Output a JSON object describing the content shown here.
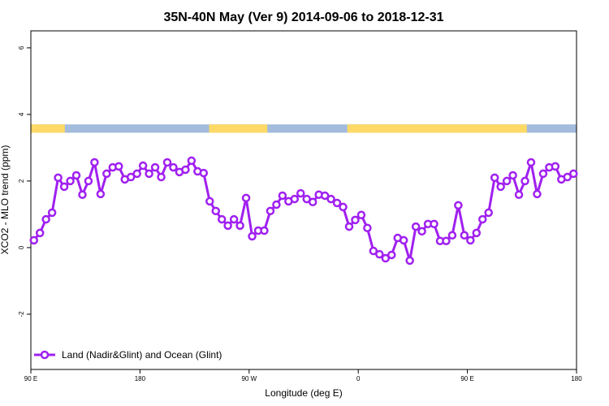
{
  "chart_data": {
    "type": "line",
    "title": "35N-40N May (Ver 9)   2014-09-06 to 2018-12-31",
    "xlabel": "Longitude (deg E)",
    "ylabel": "XCO2 - MLO trend (ppm)",
    "xlim": [
      90,
      540
    ],
    "ylim": [
      -3.66,
      6.51
    ],
    "xticks": [
      {
        "value": 90,
        "label": "90 E"
      },
      180,
      {
        "value": 270,
        "label": "90 W"
      },
      {
        "value": 360,
        "label": "0"
      },
      {
        "value": 450,
        "label": "90 E"
      },
      {
        "value": 540,
        "label": "180"
      }
    ],
    "yticks": [
      -2,
      0,
      2,
      4,
      6
    ],
    "legend": "bottom-left",
    "surface_band": {
      "ylim": [
        3.45,
        3.7
      ],
      "land_color": "#ffd966",
      "ocean_color": "#a3bbdc",
      "land": [
        [
          90,
          118
        ],
        [
          237,
          285
        ],
        [
          351,
          499
        ]
      ]
    },
    "x": [
      92.5,
      97.5,
      102.5,
      107.5,
      112.5,
      117.5,
      122.5,
      127.5,
      132.5,
      137.5,
      142.5,
      147.5,
      152.5,
      157.5,
      162.5,
      167.5,
      172.5,
      177.5,
      182.5,
      187.5,
      192.5,
      197.5,
      202.5,
      207.5,
      212.5,
      217.5,
      222.5,
      227.5,
      232.5,
      237.5,
      242.5,
      247.5,
      252.5,
      257.5,
      262.5,
      267.5,
      272.5,
      277.5,
      282.5,
      287.5,
      292.5,
      297.5,
      302.5,
      307.5,
      312.5,
      317.5,
      322.5,
      327.5,
      332.5,
      337.5,
      342.5,
      347.5,
      352.5,
      357.5,
      362.5,
      367.5,
      372.5,
      377.5,
      382.5,
      387.5,
      392.5,
      397.5,
      402.5,
      407.5,
      412.5,
      417.5,
      422.5,
      427.5,
      432.5,
      437.5,
      442.5,
      447.5,
      452.5,
      457.5,
      462.5,
      467.5,
      472.5,
      477.5,
      482.5,
      487.5,
      492.5,
      497.5,
      502.5,
      507.5,
      512.5,
      517.5,
      522.5,
      527.5,
      532.5,
      537.5
    ],
    "series": [
      {
        "name": "Land (Nadir&Glint) and Ocean (Glint)",
        "color": "#a020f0",
        "values": [
          0.22,
          0.44,
          0.85,
          1.05,
          2.1,
          1.83,
          2.0,
          2.17,
          1.59,
          2.0,
          2.56,
          1.61,
          2.22,
          2.41,
          2.44,
          2.05,
          2.12,
          2.22,
          2.46,
          2.22,
          2.41,
          2.12,
          2.56,
          2.41,
          2.27,
          2.34,
          2.61,
          2.29,
          2.24,
          1.39,
          1.1,
          0.85,
          0.66,
          0.85,
          0.66,
          1.49,
          0.34,
          0.51,
          0.51,
          1.1,
          1.29,
          1.56,
          1.39,
          1.46,
          1.63,
          1.46,
          1.37,
          1.59,
          1.56,
          1.46,
          1.34,
          1.22,
          0.63,
          0.83,
          0.98,
          0.59,
          -0.1,
          -0.2,
          -0.32,
          -0.22,
          0.29,
          0.22,
          -0.39,
          0.63,
          0.49,
          0.71,
          0.71,
          0.2,
          0.2,
          0.37,
          1.27,
          0.37,
          0.22,
          0.44,
          0.85,
          1.05,
          2.1,
          1.83,
          2.0,
          2.17,
          1.59,
          2.0,
          2.56,
          1.61,
          2.22,
          2.41,
          2.44,
          2.05,
          2.12,
          2.22
        ]
      }
    ]
  }
}
